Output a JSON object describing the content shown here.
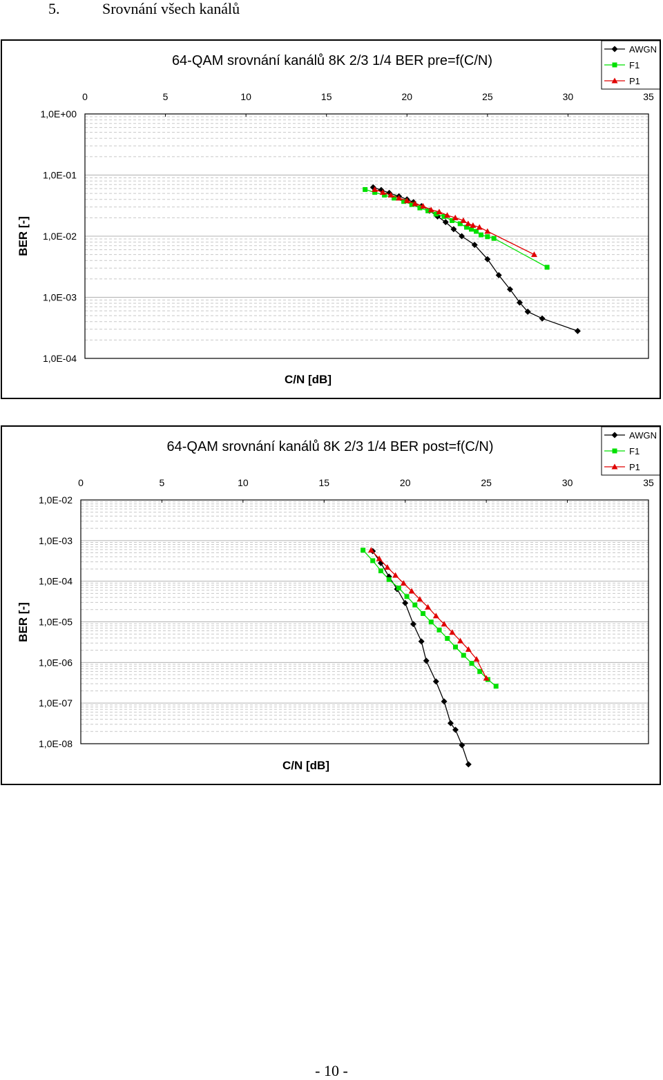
{
  "section": {
    "number": "5.",
    "title": "Srovnání všech kanálů"
  },
  "page_number": "- 10 -",
  "colors": {
    "AWGN": "#000000",
    "F1": "#00e000",
    "P1": "#e00000",
    "grid": "#c8c8c8",
    "frame": "#000000"
  },
  "chart_data": [
    {
      "type": "line",
      "title": "64-QAM srovnání kanálů 8K 2/3 1/4 BER pre=f(C/N)",
      "xlabel": "C/N [dB]",
      "ylabel": "BER [-]",
      "xlim": [
        0,
        35
      ],
      "xticks": [
        0,
        5,
        10,
        15,
        20,
        25,
        30,
        35
      ],
      "xtick_labels": [
        "0",
        "5",
        "10",
        "15",
        "20",
        "25",
        "30",
        "35"
      ],
      "y_scale": "log",
      "ylim": [
        0.0001,
        1
      ],
      "ytick_values": [
        1,
        0.1,
        0.01,
        0.001,
        0.0001
      ],
      "ytick_labels": [
        "1,0E+00",
        "1,0E-01",
        "1,0E-02",
        "1,0E-03",
        "1,0E-04"
      ],
      "x_axis_position": "top",
      "grid": true,
      "legend_position": "top-right",
      "series": [
        {
          "name": "AWGN",
          "marker": "diamond",
          "x": [
            17.9,
            18.4,
            18.9,
            19.5,
            20.0,
            20.4,
            20.9,
            21.4,
            21.9,
            22.4,
            22.9,
            23.4,
            24.2,
            25.0,
            25.7,
            26.4,
            27.0,
            27.5,
            28.4,
            30.6
          ],
          "y": [
            0.063,
            0.057,
            0.051,
            0.045,
            0.04,
            0.036,
            0.031,
            0.026,
            0.021,
            0.017,
            0.013,
            0.01,
            0.0072,
            0.0042,
            0.0023,
            0.00135,
            0.00082,
            0.00058,
            0.00045,
            0.00028
          ]
        },
        {
          "name": "F1",
          "marker": "square",
          "x": [
            17.4,
            18.0,
            18.6,
            19.2,
            19.8,
            20.3,
            20.8,
            21.3,
            21.8,
            22.3,
            22.8,
            23.3,
            23.7,
            24.0,
            24.3,
            24.6,
            25.0,
            25.4,
            28.7
          ],
          "y": [
            0.058,
            0.052,
            0.047,
            0.042,
            0.037,
            0.033,
            0.029,
            0.026,
            0.023,
            0.021,
            0.018,
            0.016,
            0.014,
            0.013,
            0.012,
            0.0105,
            0.0098,
            0.0092,
            0.0031
          ]
        },
        {
          "name": "P1",
          "marker": "triangle",
          "x": [
            18.0,
            18.5,
            19.0,
            19.5,
            20.0,
            20.5,
            21.0,
            21.5,
            22.0,
            22.5,
            23.0,
            23.5,
            23.8,
            24.1,
            24.5,
            25.0,
            27.9
          ],
          "y": [
            0.058,
            0.052,
            0.047,
            0.042,
            0.038,
            0.034,
            0.031,
            0.027,
            0.025,
            0.022,
            0.02,
            0.018,
            0.016,
            0.015,
            0.014,
            0.012,
            0.005
          ]
        }
      ]
    },
    {
      "type": "line",
      "title": "64-QAM srovnání kanálů 8K 2/3 1/4 BER post=f(C/N)",
      "xlabel": "C/N [dB]",
      "ylabel": "BER [-]",
      "xlim": [
        0,
        35
      ],
      "xticks": [
        0,
        5,
        10,
        15,
        20,
        25,
        30,
        35
      ],
      "xtick_labels": [
        "0",
        "5",
        "10",
        "15",
        "20",
        "25",
        "30",
        "35"
      ],
      "y_scale": "log",
      "ylim": [
        1e-08,
        0.01
      ],
      "ytick_values": [
        0.01,
        0.001,
        0.0001,
        1e-05,
        1e-06,
        1e-07,
        1e-08
      ],
      "ytick_labels": [
        "1,0E-02",
        "1,0E-03",
        "1,0E-04",
        "1,0E-05",
        "1,0E-06",
        "1,0E-07",
        "1,0E-08"
      ],
      "x_axis_position": "top",
      "grid": true,
      "legend_position": "top-right",
      "series": [
        {
          "name": "AWGN",
          "marker": "diamond",
          "x": [
            18.0,
            18.5,
            19.0,
            19.5,
            20.0,
            20.5,
            21.0,
            21.3,
            21.9,
            22.4,
            22.8,
            23.1,
            23.5,
            23.9
          ],
          "y": [
            0.00055,
            0.00028,
            0.00013,
            6.4e-05,
            2.9e-05,
            8.8e-06,
            3.3e-06,
            1.1e-06,
            3.4e-07,
            1.1e-07,
            3.2e-08,
            2.2e-08,
            9.2e-09,
            3.1e-09
          ]
        },
        {
          "name": "F1",
          "marker": "square",
          "x": [
            17.4,
            18.0,
            18.5,
            19.0,
            19.6,
            20.1,
            20.6,
            21.1,
            21.6,
            22.1,
            22.6,
            23.1,
            23.6,
            24.1,
            24.6,
            25.1,
            25.6
          ],
          "y": [
            0.00058,
            0.00032,
            0.00018,
            0.00011,
            6.8e-05,
            4.2e-05,
            2.6e-05,
            1.6e-05,
            9.9e-06,
            6.3e-06,
            3.9e-06,
            2.4e-06,
            1.5e-06,
            9.5e-07,
            6e-07,
            3.8e-07,
            2.6e-07
          ]
        },
        {
          "name": "P1",
          "marker": "triangle",
          "x": [
            17.9,
            18.4,
            18.9,
            19.4,
            19.9,
            20.4,
            20.9,
            21.4,
            21.9,
            22.4,
            22.9,
            23.4,
            23.9,
            24.4,
            25.0
          ],
          "y": [
            0.00058,
            0.00036,
            0.00022,
            0.00014,
            8.9e-05,
            5.7e-05,
            3.6e-05,
            2.3e-05,
            1.4e-05,
            8.8e-06,
            5.5e-06,
            3.4e-06,
            2.1e-06,
            1.2e-06,
            4.1e-07
          ]
        }
      ]
    }
  ]
}
